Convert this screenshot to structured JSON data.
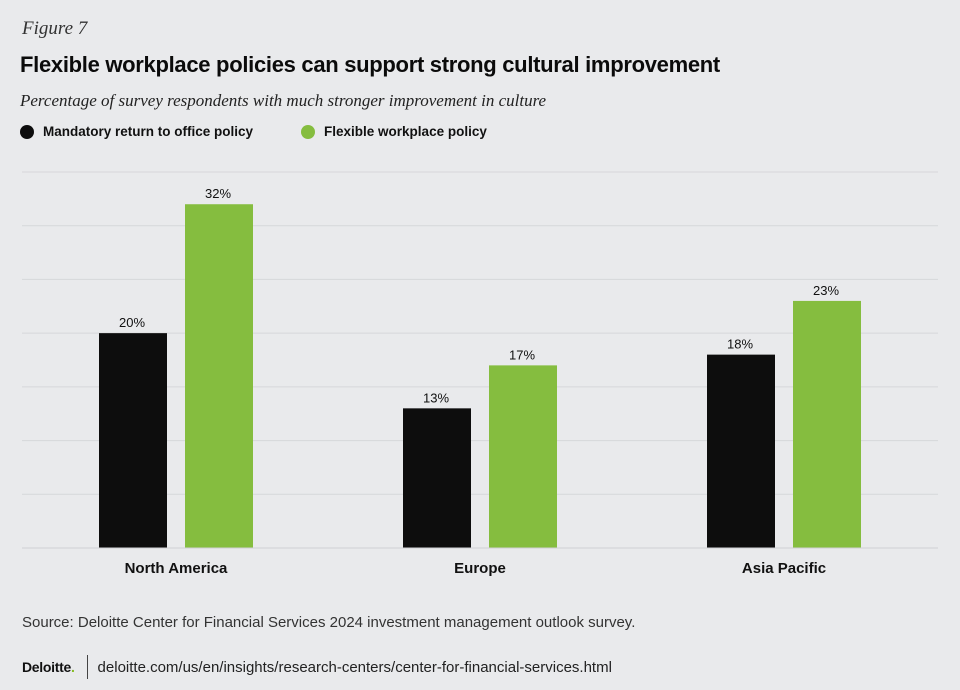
{
  "figure_label": "Figure 7",
  "title": "Flexible workplace policies can support strong cultural improvement",
  "subtitle": "Percentage of survey respondents with much stronger improvement in culture",
  "colors": {
    "mandatory": "#0d0d0d",
    "flexible": "#85bd3f",
    "background": "#e9eaec",
    "gridline": "#d6d7da"
  },
  "source": "Source: Deloitte Center for Financial Services 2024 investment management outlook survey.",
  "footer": {
    "brand": "Deloitte",
    "brand_dot": ".",
    "url": "deloitte.com/us/en/insights/research-centers/center-for-financial-services.html"
  },
  "chart_data": {
    "type": "bar",
    "categories": [
      "North America",
      "Europe",
      "Asia Pacific"
    ],
    "series": [
      {
        "name": "Mandatory return to office policy",
        "values": [
          20,
          13,
          18
        ],
        "labels": [
          "20%",
          "13%",
          "18%"
        ]
      },
      {
        "name": "Flexible workplace policy",
        "values": [
          32,
          17,
          23
        ],
        "labels": [
          "32%",
          "17%",
          "23%"
        ]
      }
    ],
    "ylim": [
      0,
      35
    ],
    "unit": "%",
    "grid": true,
    "legend": "top-left",
    "xlabel": "",
    "ylabel": ""
  }
}
